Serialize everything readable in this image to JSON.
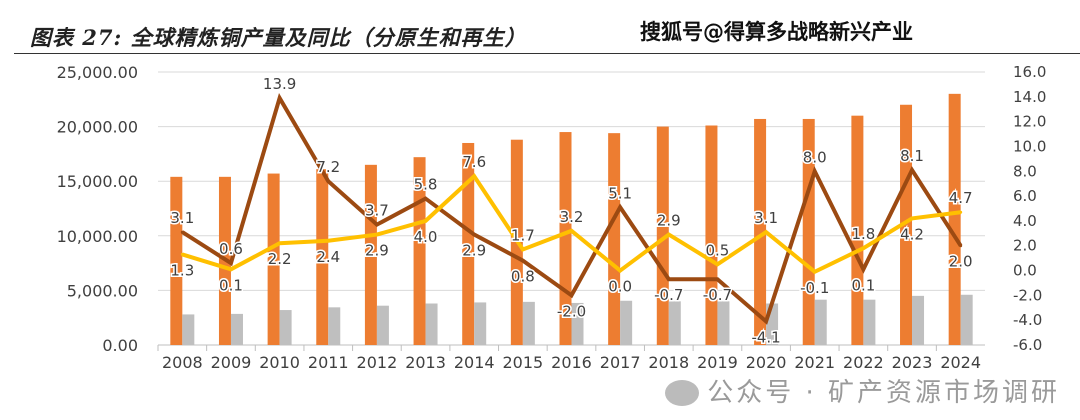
{
  "watermark_top": "搜狐号@得算多战略新兴产业",
  "watermark_bottom": "公众号 · 矿产资源市场调研",
  "chart_data": {
    "type": "bar+line",
    "title": "图表 27: 全球精炼铜产量及同比（分原生和再生）",
    "categories": [
      "2008",
      "2009",
      "2010",
      "2011",
      "2012",
      "2013",
      "2014",
      "2015",
      "2016",
      "2017",
      "2018",
      "2019",
      "2020",
      "2021",
      "2022",
      "2023",
      "2024"
    ],
    "left_axis": {
      "ylim": [
        0,
        25000
      ],
      "ticks": [
        "0.00",
        "5,000.00",
        "10,000.00",
        "15,000.00",
        "20,000.00",
        "25,000.00"
      ],
      "tick_values": [
        0,
        5000,
        10000,
        15000,
        20000,
        25000
      ]
    },
    "right_axis": {
      "ylim": [
        -6,
        16
      ],
      "ticks": [
        "-6.0",
        "-4.0",
        "-2.0",
        "0.0",
        "2.0",
        "4.0",
        "6.0",
        "8.0",
        "10.0",
        "12.0",
        "14.0",
        "16.0"
      ],
      "tick_values": [
        -6,
        -4,
        -2,
        0,
        2,
        4,
        6,
        8,
        10,
        12,
        14,
        16
      ]
    },
    "grid": true,
    "legend": "none",
    "series": [
      {
        "name": "bar-orange",
        "type": "bar",
        "axis": "left",
        "color": "#ED7D31",
        "values": [
          15400,
          15400,
          15700,
          16100,
          16500,
          17200,
          18500,
          18800,
          19500,
          19400,
          20000,
          20100,
          20700,
          20700,
          21000,
          22000,
          23000
        ]
      },
      {
        "name": "bar-gray",
        "type": "bar",
        "axis": "left",
        "color": "#BFBFBF",
        "values": [
          2800,
          2850,
          3200,
          3450,
          3600,
          3800,
          3900,
          3950,
          3850,
          4050,
          4000,
          4000,
          3800,
          4150,
          4150,
          4500,
          4600
        ]
      },
      {
        "name": "line-brown",
        "type": "line",
        "axis": "right",
        "color": "#9C4A12",
        "values": [
          3.1,
          0.6,
          13.9,
          7.2,
          3.7,
          5.8,
          2.9,
          0.8,
          -2.0,
          5.1,
          -0.7,
          -0.7,
          -4.1,
          8.0,
          0.1,
          8.1,
          2.0
        ],
        "labels": [
          "3.1",
          "0.6",
          "13.9",
          "7.2",
          "3.7",
          "5.8",
          "2.9",
          "0.8",
          "-2.0",
          "5.1",
          "-0.7",
          "-0.7",
          "-4.1",
          "8.0",
          "0.1",
          "8.1",
          "2.0"
        ]
      },
      {
        "name": "line-yellow",
        "type": "line",
        "axis": "right",
        "color": "#FFC000",
        "values": [
          1.3,
          0.1,
          2.2,
          2.4,
          2.9,
          4.0,
          7.6,
          1.7,
          3.2,
          0.0,
          2.9,
          0.5,
          3.1,
          -0.1,
          1.8,
          4.2,
          4.7
        ],
        "labels": [
          "1.3",
          "0.1",
          "2.2",
          "2.4",
          "2.9",
          "4.0",
          "7.6",
          "1.7",
          "3.2",
          "0.0",
          "2.9",
          "0.5",
          "3.1",
          "-0.1",
          "1.8",
          "4.2",
          "4.7"
        ]
      }
    ]
  }
}
